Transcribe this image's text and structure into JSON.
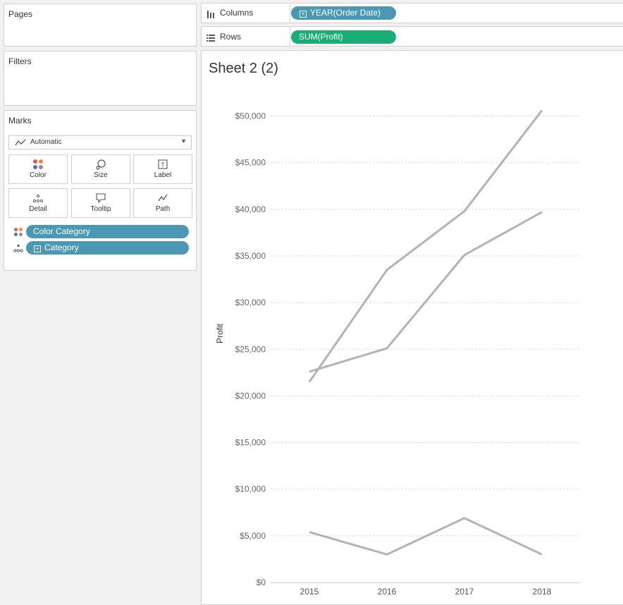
{
  "left": {
    "pages": {
      "title": "Pages"
    },
    "filters": {
      "title": "Filters"
    },
    "marks": {
      "title": "Marks",
      "type_label": "Automatic",
      "buttons": [
        "Color",
        "Size",
        "Label",
        "Detail",
        "Tooltip",
        "Path"
      ],
      "fields": [
        {
          "label": "Color Category",
          "icon": "color-dots-icon"
        },
        {
          "label": "Category",
          "icon": "detail-dots-icon"
        }
      ]
    }
  },
  "shelves": {
    "columns": {
      "label": "Columns",
      "pill": "YEAR(Order Date)"
    },
    "rows": {
      "label": "Rows",
      "pill": "SUM(Profit)"
    }
  },
  "sheet": {
    "title": "Sheet 2 (2)"
  },
  "colors": {
    "pill_blue": "#4b98b5",
    "pill_green": "#1aae76",
    "line": "#b3b3b3"
  },
  "chart_data": {
    "type": "line",
    "x": [
      "2015",
      "2016",
      "2017",
      "2018"
    ],
    "ylabel": "Profit",
    "ylim": [
      0,
      50000
    ],
    "yticks": [
      0,
      5000,
      10000,
      15000,
      20000,
      25000,
      30000,
      35000,
      40000,
      45000,
      50000
    ],
    "ytick_labels": [
      "$0",
      "$5,000",
      "$10,000",
      "$15,000",
      "$20,000",
      "$25,000",
      "$30,000",
      "$35,000",
      "$40,000",
      "$45,000",
      "$50,000"
    ],
    "grid": true,
    "series": [
      {
        "values": [
          21500,
          33500,
          39800,
          50600
        ]
      },
      {
        "values": [
          22600,
          25100,
          35100,
          39700
        ]
      },
      {
        "values": [
          5400,
          3000,
          6900,
          3000
        ]
      }
    ]
  }
}
